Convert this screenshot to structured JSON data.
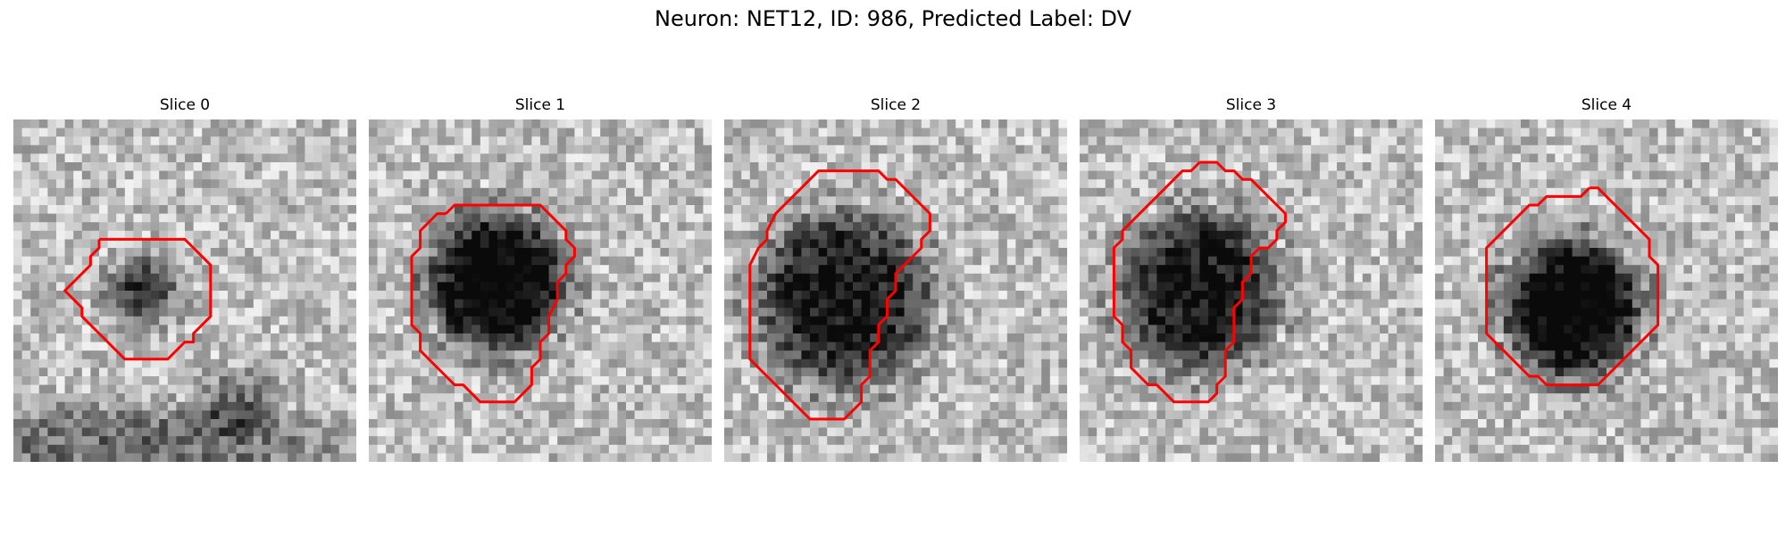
{
  "figure": {
    "title": "Neuron: NET12, ID: 986, Predicted Label: DV"
  },
  "colors": {
    "contour": "#ff0000",
    "background": "#ffffff"
  },
  "panels": [
    {
      "title": "Slice 0",
      "contour": [
        [
          10,
          14
        ],
        [
          11,
          14
        ],
        [
          13,
          14
        ],
        [
          14,
          14
        ],
        [
          16,
          14
        ],
        [
          17,
          14
        ],
        [
          19,
          14
        ],
        [
          20,
          14
        ],
        [
          21,
          15
        ],
        [
          22,
          16
        ],
        [
          23,
          17
        ],
        [
          23,
          18
        ],
        [
          23,
          20
        ],
        [
          23,
          22
        ],
        [
          23,
          23
        ],
        [
          22,
          24
        ],
        [
          21,
          25
        ],
        [
          21,
          26
        ],
        [
          20,
          26
        ],
        [
          19,
          27
        ],
        [
          18,
          28
        ],
        [
          17,
          28
        ],
        [
          16,
          28
        ],
        [
          14,
          28
        ],
        [
          13,
          28
        ],
        [
          12,
          27
        ],
        [
          11,
          26
        ],
        [
          10,
          25
        ],
        [
          9,
          24
        ],
        [
          8,
          23
        ],
        [
          8,
          22
        ],
        [
          7,
          21
        ],
        [
          6,
          20
        ],
        [
          7,
          19
        ],
        [
          8,
          18
        ],
        [
          9,
          17
        ],
        [
          9,
          16
        ],
        [
          10,
          15
        ],
        [
          10,
          14
        ]
      ],
      "inner": {
        "cx": 15,
        "cy": 20,
        "r": 4.5,
        "depth": 0.55
      },
      "dark": [
        {
          "cx": 15,
          "cy": 38,
          "rx": 30,
          "ry": 6,
          "depth": 0.35
        },
        {
          "cx": 26,
          "cy": 33,
          "rx": 6,
          "ry": 5,
          "depth": 0.3
        }
      ],
      "seed": 11
    },
    {
      "title": "Slice 1",
      "contour": [
        [
          9,
          11
        ],
        [
          10,
          10
        ],
        [
          12,
          10
        ],
        [
          14,
          10
        ],
        [
          16,
          10
        ],
        [
          18,
          10
        ],
        [
          20,
          10
        ],
        [
          21,
          11
        ],
        [
          22,
          12
        ],
        [
          23,
          13
        ],
        [
          23,
          14
        ],
        [
          24,
          15
        ],
        [
          24,
          16
        ],
        [
          23,
          17
        ],
        [
          23,
          18
        ],
        [
          22,
          19
        ],
        [
          22,
          21
        ],
        [
          21,
          23
        ],
        [
          21,
          25
        ],
        [
          20,
          26
        ],
        [
          20,
          28
        ],
        [
          19,
          29
        ],
        [
          19,
          31
        ],
        [
          18,
          32
        ],
        [
          17,
          33
        ],
        [
          15,
          33
        ],
        [
          13,
          33
        ],
        [
          12,
          32
        ],
        [
          11,
          31
        ],
        [
          10,
          31
        ],
        [
          9,
          30
        ],
        [
          8,
          29
        ],
        [
          7,
          28
        ],
        [
          6,
          27
        ],
        [
          6,
          25
        ],
        [
          5,
          24
        ],
        [
          5,
          22
        ],
        [
          5,
          20
        ],
        [
          5,
          18
        ],
        [
          5,
          16
        ],
        [
          6,
          15
        ],
        [
          6,
          13
        ],
        [
          7,
          12
        ],
        [
          8,
          11
        ],
        [
          9,
          11
        ]
      ],
      "inner": {
        "cx": 15,
        "cy": 19,
        "r": 9.5,
        "depth": 0.85
      },
      "dark": [],
      "seed": 23
    },
    {
      "title": "Slice 2",
      "contour": [
        [
          12,
          6
        ],
        [
          14,
          6
        ],
        [
          16,
          6
        ],
        [
          18,
          6
        ],
        [
          19,
          7
        ],
        [
          20,
          7
        ],
        [
          21,
          8
        ],
        [
          22,
          9
        ],
        [
          23,
          10
        ],
        [
          24,
          11
        ],
        [
          24,
          13
        ],
        [
          23,
          14
        ],
        [
          23,
          15
        ],
        [
          22,
          16
        ],
        [
          21,
          17
        ],
        [
          20,
          18
        ],
        [
          20,
          20
        ],
        [
          19,
          21
        ],
        [
          19,
          23
        ],
        [
          18,
          24
        ],
        [
          18,
          26
        ],
        [
          17,
          27
        ],
        [
          17,
          30
        ],
        [
          16,
          31
        ],
        [
          16,
          33
        ],
        [
          15,
          34
        ],
        [
          14,
          35
        ],
        [
          12,
          35
        ],
        [
          10,
          35
        ],
        [
          9,
          34
        ],
        [
          8,
          33
        ],
        [
          7,
          32
        ],
        [
          6,
          31
        ],
        [
          5,
          30
        ],
        [
          4,
          29
        ],
        [
          3,
          28
        ],
        [
          3,
          26
        ],
        [
          3,
          24
        ],
        [
          3,
          22
        ],
        [
          3,
          19
        ],
        [
          3,
          17
        ],
        [
          4,
          15
        ],
        [
          5,
          14
        ],
        [
          5,
          13
        ],
        [
          6,
          11
        ],
        [
          7,
          10
        ],
        [
          8,
          9
        ],
        [
          9,
          8
        ],
        [
          10,
          7
        ],
        [
          11,
          6
        ],
        [
          12,
          6
        ]
      ],
      "inner": {
        "cx": 14,
        "cy": 21,
        "r": 12,
        "depth": 0.7
      },
      "dark": [],
      "seed": 37
    },
    {
      "title": "Slice 3",
      "contour": [
        [
          14,
          5
        ],
        [
          15,
          5
        ],
        [
          16,
          5
        ],
        [
          17,
          6
        ],
        [
          18,
          6
        ],
        [
          19,
          7
        ],
        [
          20,
          7
        ],
        [
          21,
          8
        ],
        [
          22,
          9
        ],
        [
          23,
          10
        ],
        [
          24,
          11
        ],
        [
          24,
          12
        ],
        [
          23,
          13
        ],
        [
          23,
          14
        ],
        [
          22,
          15
        ],
        [
          21,
          15
        ],
        [
          20,
          16
        ],
        [
          20,
          18
        ],
        [
          19,
          19
        ],
        [
          19,
          21
        ],
        [
          18,
          22
        ],
        [
          18,
          24
        ],
        [
          18,
          26
        ],
        [
          17,
          27
        ],
        [
          17,
          30
        ],
        [
          16,
          31
        ],
        [
          16,
          32
        ],
        [
          15,
          33
        ],
        [
          13,
          33
        ],
        [
          11,
          33
        ],
        [
          10,
          32
        ],
        [
          9,
          31
        ],
        [
          8,
          31
        ],
        [
          7,
          30
        ],
        [
          6,
          29
        ],
        [
          6,
          27
        ],
        [
          5,
          26
        ],
        [
          5,
          24
        ],
        [
          4,
          23
        ],
        [
          4,
          21
        ],
        [
          4,
          19
        ],
        [
          4,
          17
        ],
        [
          4,
          15
        ],
        [
          5,
          14
        ],
        [
          5,
          13
        ],
        [
          6,
          12
        ],
        [
          7,
          11
        ],
        [
          8,
          10
        ],
        [
          9,
          9
        ],
        [
          10,
          8
        ],
        [
          11,
          7
        ],
        [
          12,
          6
        ],
        [
          13,
          6
        ],
        [
          14,
          5
        ]
      ],
      "inner": {
        "cx": 14,
        "cy": 20,
        "r": 11,
        "depth": 0.7
      },
      "dark": [],
      "seed": 53
    },
    {
      "title": "Slice 4",
      "contour": [
        [
          18,
          8
        ],
        [
          19,
          8
        ],
        [
          20,
          9
        ],
        [
          21,
          10
        ],
        [
          22,
          11
        ],
        [
          23,
          12
        ],
        [
          24,
          13
        ],
        [
          25,
          14
        ],
        [
          25,
          16
        ],
        [
          26,
          17
        ],
        [
          26,
          19
        ],
        [
          26,
          21
        ],
        [
          26,
          24
        ],
        [
          25,
          25
        ],
        [
          24,
          26
        ],
        [
          23,
          27
        ],
        [
          22,
          28
        ],
        [
          21,
          29
        ],
        [
          20,
          30
        ],
        [
          19,
          31
        ],
        [
          17,
          31
        ],
        [
          15,
          31
        ],
        [
          14,
          31
        ],
        [
          13,
          31
        ],
        [
          12,
          30
        ],
        [
          11,
          30
        ],
        [
          10,
          29
        ],
        [
          9,
          28
        ],
        [
          8,
          27
        ],
        [
          7,
          26
        ],
        [
          6,
          25
        ],
        [
          6,
          23
        ],
        [
          6,
          20
        ],
        [
          6,
          17
        ],
        [
          6,
          15
        ],
        [
          7,
          14
        ],
        [
          8,
          13
        ],
        [
          9,
          12
        ],
        [
          10,
          11
        ],
        [
          11,
          10
        ],
        [
          12,
          10
        ],
        [
          13,
          9
        ],
        [
          14,
          9
        ],
        [
          15,
          9
        ],
        [
          17,
          9
        ],
        [
          18,
          8
        ]
      ],
      "inner": {
        "cx": 16,
        "cy": 22,
        "r": 9.5,
        "depth": 0.85
      },
      "dark": [],
      "seed": 71
    }
  ]
}
